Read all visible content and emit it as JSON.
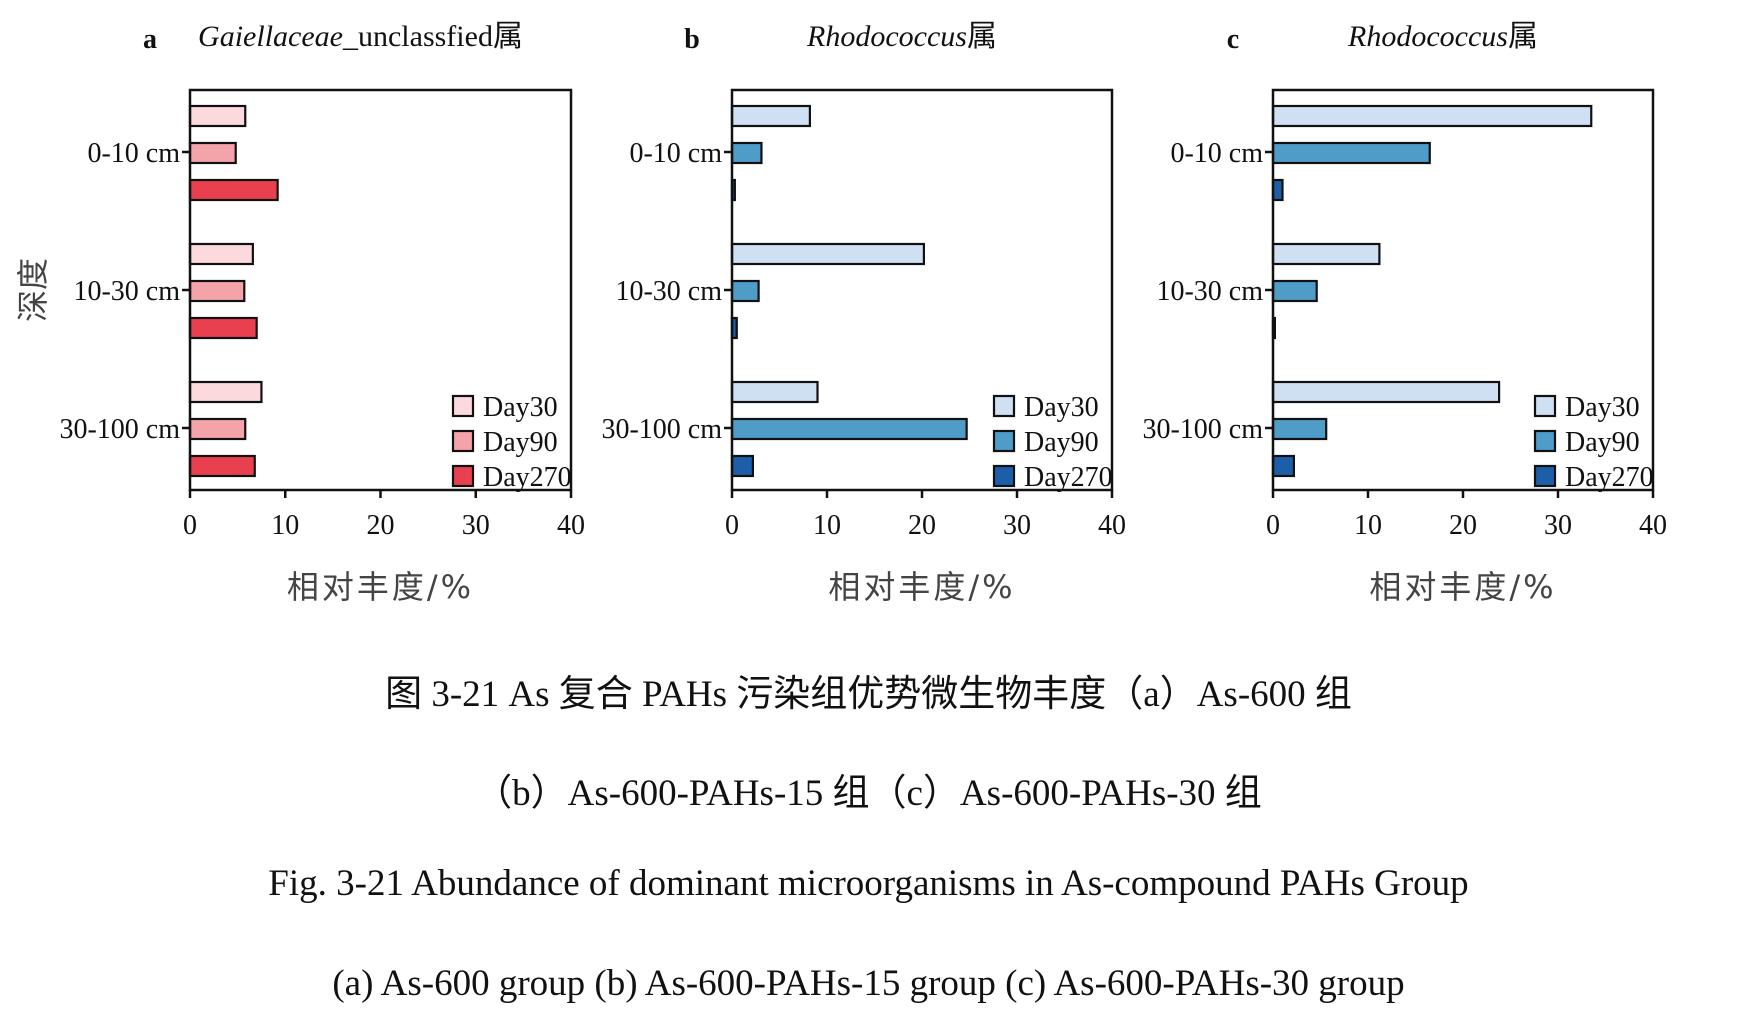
{
  "chart_data": [
    {
      "type": "bar",
      "orientation": "horizontal",
      "panel_letter": "a",
      "title_italic": "Gaiellaceae",
      "title_rest": "_unclassfied属",
      "ylabel": "深度",
      "xlabel": "相对丰度/%",
      "categories": [
        "0-10 cm",
        "10-30 cm",
        "30-100 cm"
      ],
      "xlim": [
        0,
        40
      ],
      "xticks": [
        0,
        10,
        20,
        30,
        40
      ],
      "legend_position": "bottom-right",
      "series": [
        {
          "name": "Day30",
          "color": "#fbd9dc",
          "values": [
            5.8,
            6.6,
            7.5
          ]
        },
        {
          "name": "Day90",
          "color": "#f4a3ab",
          "values": [
            4.8,
            5.7,
            5.8
          ]
        },
        {
          "name": "Day270",
          "color": "#e8404f",
          "values": [
            9.2,
            7.0,
            6.8
          ]
        }
      ]
    },
    {
      "type": "bar",
      "orientation": "horizontal",
      "panel_letter": "b",
      "title_italic": "Rhodococcus",
      "title_rest": "属",
      "xlabel": "相对丰度/%",
      "categories": [
        "0-10 cm",
        "10-30 cm",
        "30-100 cm"
      ],
      "xlim": [
        0,
        40
      ],
      "xticks": [
        0,
        10,
        20,
        30,
        40
      ],
      "legend_position": "bottom-right",
      "series": [
        {
          "name": "Day30",
          "color": "#cfe0f3",
          "values": [
            8.2,
            20.2,
            9.0
          ]
        },
        {
          "name": "Day90",
          "color": "#4f9cc8",
          "values": [
            3.1,
            2.8,
            24.7
          ]
        },
        {
          "name": "Day270",
          "color": "#1c5ea8",
          "values": [
            0.3,
            0.5,
            2.2
          ]
        }
      ]
    },
    {
      "type": "bar",
      "orientation": "horizontal",
      "panel_letter": "c",
      "title_italic": "Rhodococcus",
      "title_rest": "属",
      "xlabel": "相对丰度/%",
      "categories": [
        "0-10 cm",
        "10-30 cm",
        "30-100 cm"
      ],
      "xlim": [
        0,
        40
      ],
      "xticks": [
        0,
        10,
        20,
        30,
        40
      ],
      "legend_position": "bottom-right",
      "series": [
        {
          "name": "Day30",
          "color": "#cfe0f3",
          "values": [
            33.5,
            11.2,
            23.8
          ]
        },
        {
          "name": "Day90",
          "color": "#4f9cc8",
          "values": [
            16.5,
            4.6,
            5.6
          ]
        },
        {
          "name": "Day270",
          "color": "#1c5ea8",
          "values": [
            1.0,
            0.2,
            2.2
          ]
        }
      ]
    }
  ],
  "captions": {
    "cn_line1": "图 3-21 As 复合 PAHs 污染组优势微生物丰度（a）As-600 组",
    "cn_line2": "（b）As-600-PAHs-15 组（c）As-600-PAHs-30 组",
    "en_line1": "Fig. 3-21 Abundance of dominant microorganisms in As-compound PAHs Group",
    "en_line2": "(a) As-600 group (b) As-600-PAHs-15 group (c) As-600-PAHs-30 group"
  }
}
